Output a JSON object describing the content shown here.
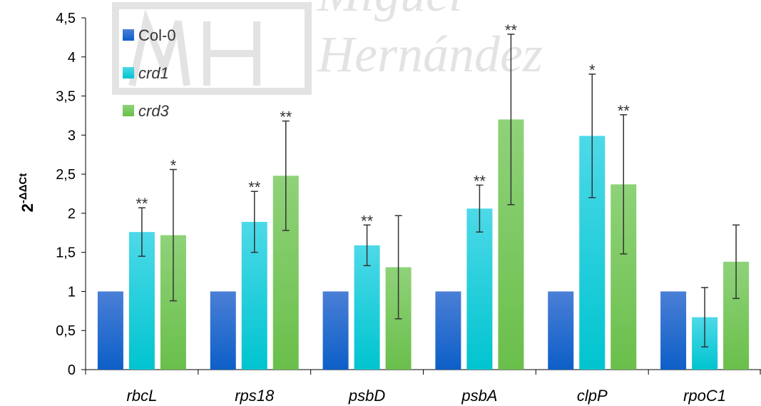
{
  "chart_data": {
    "type": "bar",
    "title": "",
    "xlabel": "",
    "ylabel": {
      "base": "2",
      "superscript": "-ΔΔCt"
    },
    "ylim": [
      0,
      4.5
    ],
    "yticks": [
      "0",
      "0,5",
      "1",
      "1,5",
      "2",
      "2,5",
      "3",
      "3,5",
      "4",
      "4,5"
    ],
    "grid": false,
    "legend_position": "top-left",
    "categories": [
      "rbcL",
      "rps18",
      "psbD",
      "psbA",
      "clpP",
      "rpoC1"
    ],
    "series": [
      {
        "name": "Col-0",
        "italic": false,
        "color_top": "#4a7fd6",
        "color_bottom": "#0d5fc8",
        "values": [
          1,
          1,
          1,
          1,
          1,
          1
        ],
        "errors": [
          null,
          null,
          null,
          null,
          null,
          null
        ],
        "significance": [
          "",
          "",
          "",
          "",
          "",
          ""
        ]
      },
      {
        "name": "crd1",
        "italic": true,
        "color_top": "#4dd9e8",
        "color_bottom": "#00c4cf",
        "values": [
          1.76,
          1.89,
          1.59,
          2.06,
          2.99,
          0.67
        ],
        "errors": [
          0.31,
          0.39,
          0.26,
          0.3,
          0.79,
          0.38
        ],
        "significance": [
          "**",
          "**",
          "**",
          "**",
          "*",
          ""
        ]
      },
      {
        "name": "crd3",
        "italic": true,
        "color_top": "#8fd279",
        "color_bottom": "#6abf4b",
        "values": [
          1.72,
          2.48,
          1.31,
          3.2,
          2.37,
          1.38
        ],
        "errors": [
          0.84,
          0.7,
          0.66,
          1.09,
          0.89,
          0.47
        ],
        "significance": [
          "*",
          "**",
          "",
          "**",
          "**",
          ""
        ]
      }
    ],
    "watermark": "Miguel Hernández"
  }
}
